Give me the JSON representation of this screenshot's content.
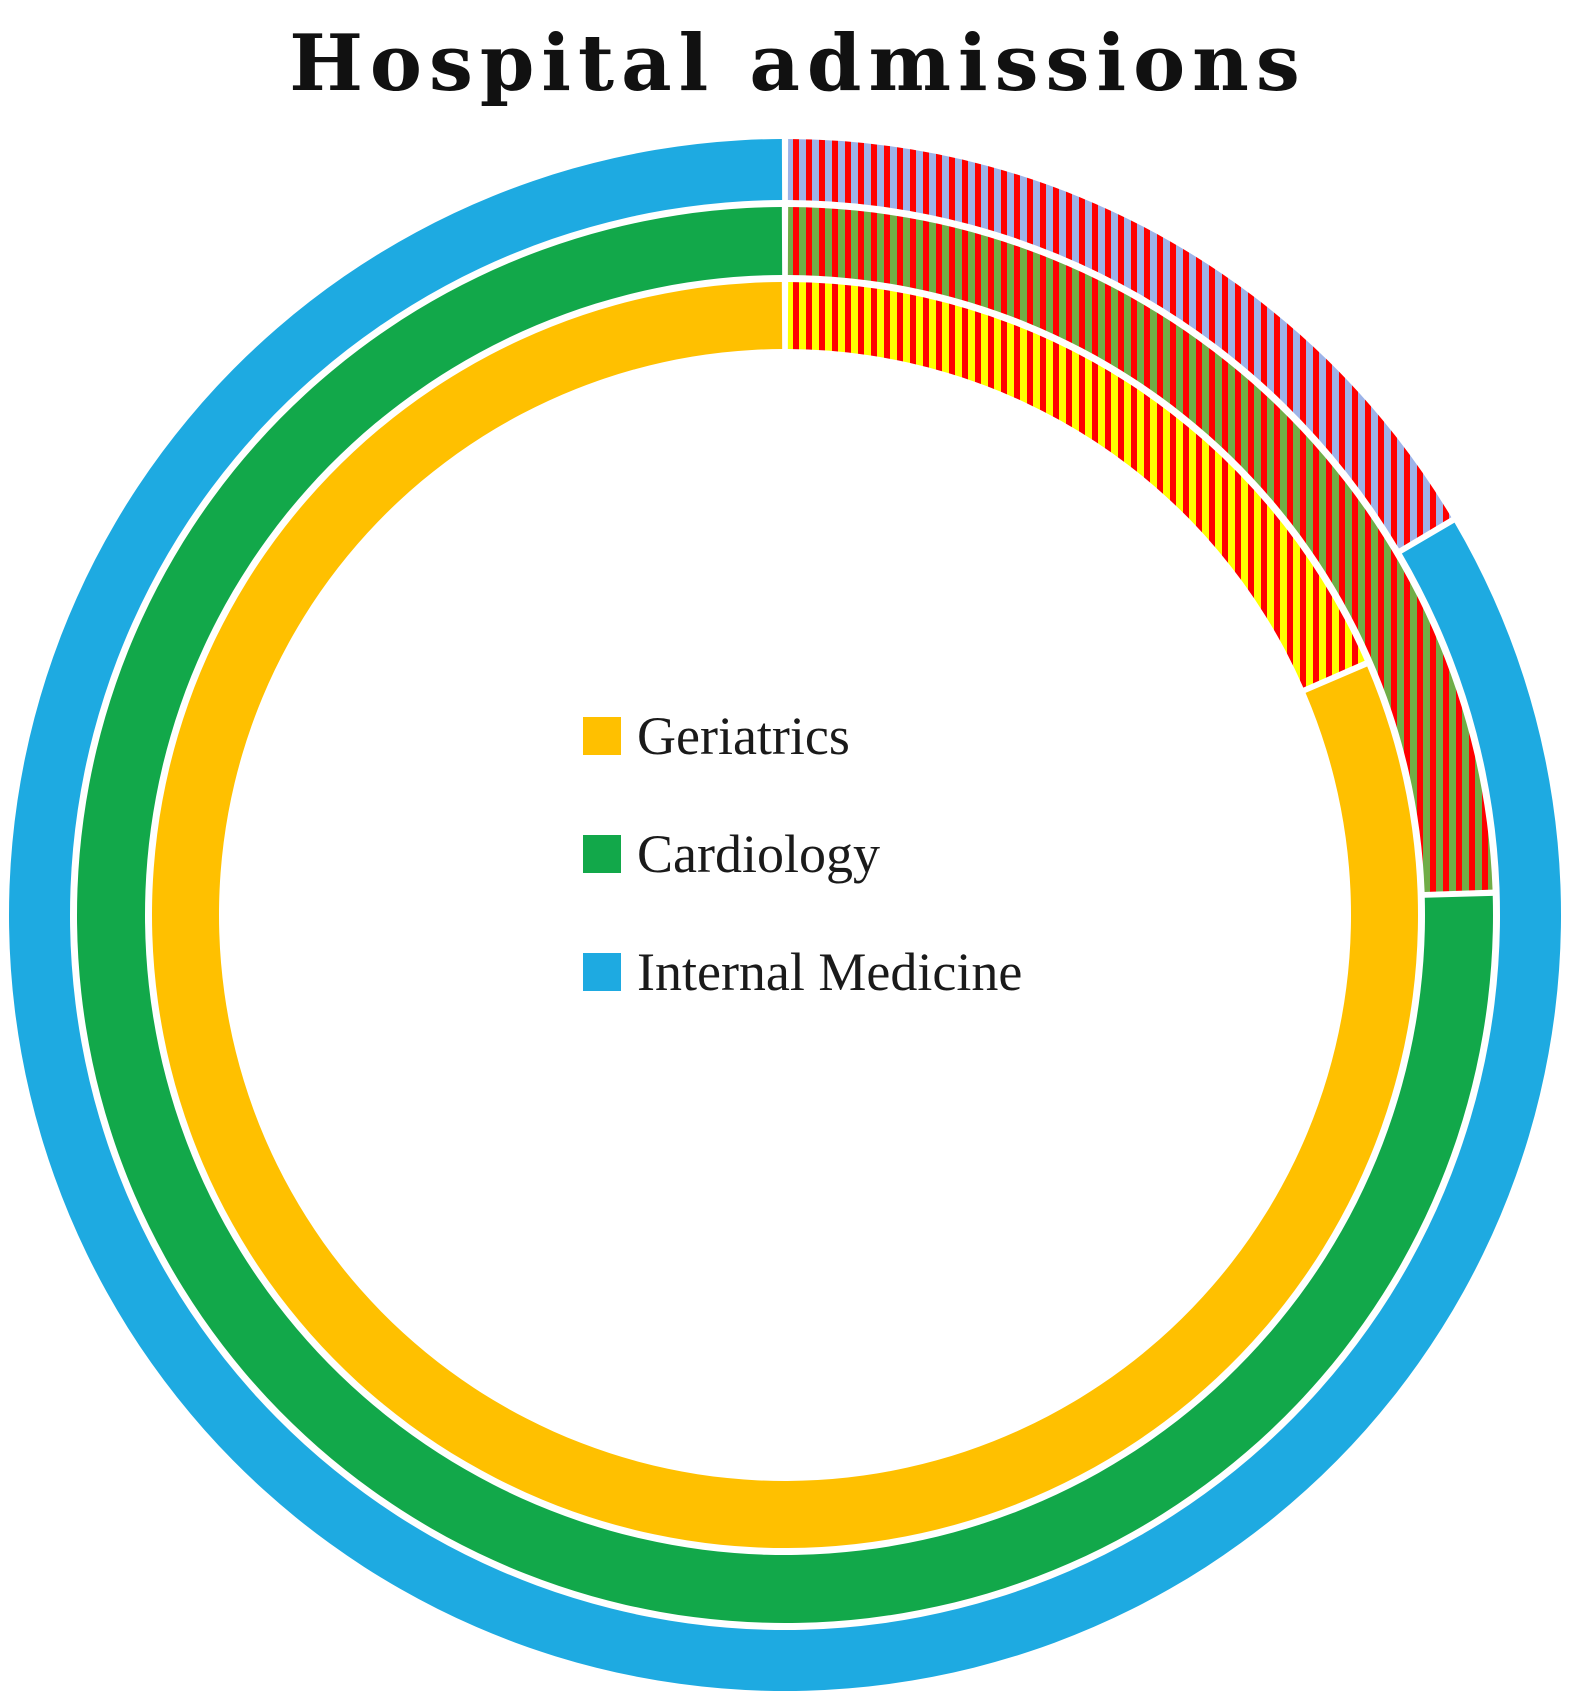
{
  "chart_data": {
    "type": "donut",
    "title": "Hospital admissions",
    "rings": [
      {
        "name": "Geriatrics",
        "color": "#FFC000",
        "hatch_colors": [
          "#FFFF00",
          "#FF0000"
        ],
        "segments": [
          {
            "portion": "hatched",
            "value": 0.185
          },
          {
            "portion": "solid",
            "value": 0.815
          }
        ]
      },
      {
        "name": "Cardiology",
        "color": "#12A84A",
        "hatch_colors": [
          "#70AD47",
          "#FF0000"
        ],
        "segments": [
          {
            "portion": "hatched",
            "value": 0.245
          },
          {
            "portion": "solid",
            "value": 0.755
          }
        ]
      },
      {
        "name": "Internal Medicine",
        "color": "#1EAAE1",
        "hatch_colors": [
          "#9DB3E8",
          "#FF0000"
        ],
        "segments": [
          {
            "portion": "hatched",
            "value": 0.165
          },
          {
            "portion": "solid",
            "value": 0.835
          }
        ]
      }
    ],
    "legend": {
      "placement": "center",
      "entries": [
        {
          "label": "Geriatrics",
          "color": "#FFC000"
        },
        {
          "label": "Cardiology",
          "color": "#12A84A"
        },
        {
          "label": "Internal Medicine",
          "color": "#1EAAE1"
        }
      ]
    }
  }
}
